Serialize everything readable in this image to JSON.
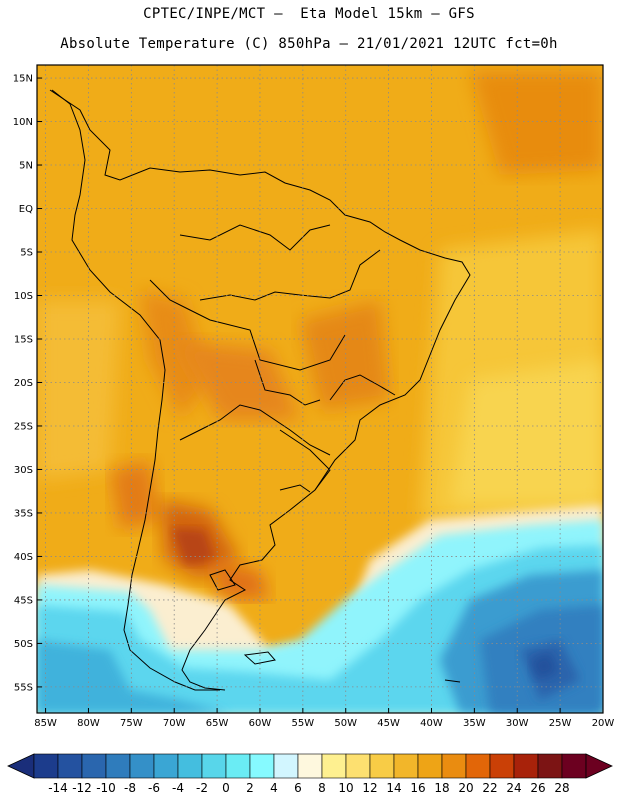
{
  "header": {
    "line1": "CPTEC/INPE/MCT –  Eta Model 15km – GFS",
    "line2": "Absolute Temperature (C) 850hPa – 21/01/2021 12UTC fct=0h"
  },
  "map": {
    "lat_labels": [
      "15N",
      "10N",
      "5N",
      "EQ",
      "5S",
      "10S",
      "15S",
      "20S",
      "25S",
      "30S",
      "35S",
      "40S",
      "45S",
      "50S",
      "55S"
    ],
    "lon_labels": [
      "85W",
      "80W",
      "75W",
      "70W",
      "65W",
      "60W",
      "55W",
      "50W",
      "45W",
      "40W",
      "35W",
      "30W",
      "25W",
      "20W"
    ],
    "lon_range": [
      -86,
      -20
    ],
    "lat_range": [
      -58,
      16.5
    ],
    "ocean_color": "#f0b020",
    "land_color": "#f0a410"
  },
  "colorbar": {
    "labels": [
      "-14",
      "-12",
      "-10",
      "-8",
      "-6",
      "-4",
      "-2",
      "0",
      "2",
      "4",
      "6",
      "8",
      "10",
      "12",
      "14",
      "16",
      "18",
      "20",
      "22",
      "24",
      "26",
      "28"
    ],
    "colors": [
      "#1c3c8c",
      "#2452a0",
      "#2a66ae",
      "#2f7cbc",
      "#3490c8",
      "#3aa6d4",
      "#44bedf",
      "#58d6ea",
      "#6aecf4",
      "#86faff",
      "#d2f6ff",
      "#fef8de",
      "#fef090",
      "#fde070",
      "#f8cc46",
      "#f2b62a",
      "#eea416",
      "#ea8c10",
      "#e26608",
      "#ca4006",
      "#a8220a",
      "#7c1414",
      "#6c0020"
    ],
    "under_color": "#1a2e7a",
    "over_color": "#6c0020"
  }
}
